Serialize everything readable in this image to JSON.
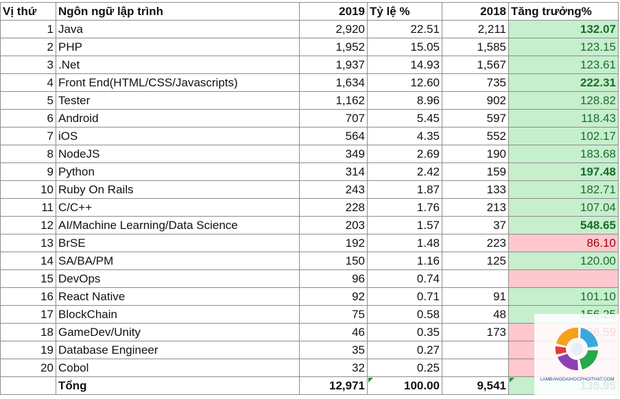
{
  "headers": {
    "rank": "Vị thứ",
    "language": "Ngôn ngữ lập trình",
    "y2019": "2019",
    "ratio": "Tỷ lệ %",
    "y2018": "2018",
    "growth": "Tăng trưởng%"
  },
  "rows": [
    {
      "rank": "1",
      "language": "Java",
      "y2019": "2,920",
      "ratio": "22.51",
      "y2018": "2,211",
      "growth": "132.07",
      "status": "up",
      "bold": true
    },
    {
      "rank": "2",
      "language": "PHP",
      "y2019": "1,952",
      "ratio": "15.05",
      "y2018": "1,585",
      "growth": "123.15",
      "status": "up",
      "bold": false
    },
    {
      "rank": "3",
      "language": ".Net",
      "y2019": "1,937",
      "ratio": "14.93",
      "y2018": "1,567",
      "growth": "123.61",
      "status": "up",
      "bold": false
    },
    {
      "rank": "4",
      "language": "Front End(HTML/CSS/Javascripts)",
      "y2019": "1,634",
      "ratio": "12.60",
      "y2018": "735",
      "growth": "222.31",
      "status": "up",
      "bold": true
    },
    {
      "rank": "5",
      "language": "Tester",
      "y2019": "1,162",
      "ratio": "8.96",
      "y2018": "902",
      "growth": "128.82",
      "status": "up",
      "bold": false
    },
    {
      "rank": "6",
      "language": "Android",
      "y2019": "707",
      "ratio": "5.45",
      "y2018": "597",
      "growth": "118.43",
      "status": "up",
      "bold": false
    },
    {
      "rank": "7",
      "language": "iOS",
      "y2019": "564",
      "ratio": "4.35",
      "y2018": "552",
      "growth": "102.17",
      "status": "up",
      "bold": false
    },
    {
      "rank": "8",
      "language": "NodeJS",
      "y2019": "349",
      "ratio": "2.69",
      "y2018": "190",
      "growth": "183.68",
      "status": "up",
      "bold": false
    },
    {
      "rank": "9",
      "language": "Python",
      "y2019": "314",
      "ratio": "2.42",
      "y2018": "159",
      "growth": "197.48",
      "status": "up",
      "bold": true
    },
    {
      "rank": "10",
      "language": "Ruby On Rails",
      "y2019": "243",
      "ratio": "1.87",
      "y2018": "133",
      "growth": "182.71",
      "status": "up",
      "bold": false
    },
    {
      "rank": "11",
      "language": "C/C++",
      "y2019": "228",
      "ratio": "1.76",
      "y2018": "213",
      "growth": "107.04",
      "status": "up",
      "bold": false
    },
    {
      "rank": "12",
      "language": "AI/Machine Learning/Data Science",
      "y2019": "203",
      "ratio": "1.57",
      "y2018": "37",
      "growth": "548.65",
      "status": "up",
      "bold": true
    },
    {
      "rank": "13",
      "language": "BrSE",
      "y2019": "192",
      "ratio": "1.48",
      "y2018": "223",
      "growth": "86.10",
      "status": "down",
      "bold": false
    },
    {
      "rank": "14",
      "language": "SA/BA/PM",
      "y2019": "150",
      "ratio": "1.16",
      "y2018": "125",
      "growth": "120.00",
      "status": "up",
      "bold": false
    },
    {
      "rank": "15",
      "language": "DevOps",
      "y2019": "96",
      "ratio": "0.74",
      "y2018": "",
      "growth": "",
      "status": "down",
      "bold": false
    },
    {
      "rank": "16",
      "language": "React Native",
      "y2019": "92",
      "ratio": "0.71",
      "y2018": "91",
      "growth": "101.10",
      "status": "up",
      "bold": false
    },
    {
      "rank": "17",
      "language": "BlockChain",
      "y2019": "75",
      "ratio": "0.58",
      "y2018": "48",
      "growth": "156.25",
      "status": "up",
      "bold": false
    },
    {
      "rank": "18",
      "language": "GameDev/Unity",
      "y2019": "46",
      "ratio": "0.35",
      "y2018": "173",
      "growth": "26.59",
      "status": "down",
      "bold": false
    },
    {
      "rank": "19",
      "language": "Database Engineer",
      "y2019": "35",
      "ratio": "0.27",
      "y2018": "",
      "growth": "",
      "status": "down",
      "bold": false
    },
    {
      "rank": "20",
      "language": "Cobol",
      "y2019": "32",
      "ratio": "0.25",
      "y2018": "",
      "growth": "",
      "status": "down",
      "bold": false
    }
  ],
  "total": {
    "rank": "",
    "language": "Tổng",
    "y2019": "12,971",
    "ratio": "100.00",
    "y2018": "9,541",
    "growth": "135.95",
    "status": "up"
  },
  "watermark": {
    "text": "LAMBANGDAIHOCPHOITHAT.COM",
    "icon": "colorful-ring-logo"
  },
  "colors": {
    "up_fill": "#c6efce",
    "up_text": "#1d6b2a",
    "down_fill": "#ffc7ce",
    "down_text": "#9c0006"
  }
}
